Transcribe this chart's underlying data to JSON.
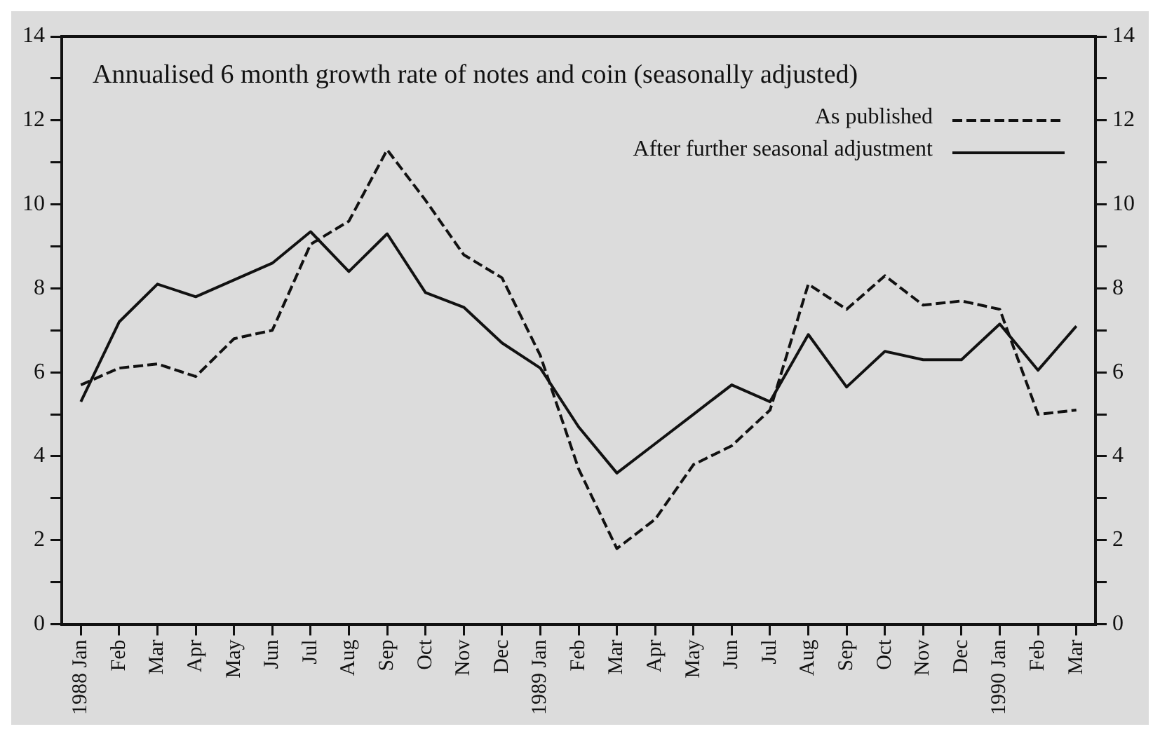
{
  "chart_data": {
    "type": "line",
    "title": "Annualised 6 month growth rate of notes and coin (seasonally adjusted)",
    "categories": [
      "1988 Jan",
      "Feb",
      "Mar",
      "Apr",
      "May",
      "Jun",
      "Jul",
      "Aug",
      "Sep",
      "Oct",
      "Nov",
      "Dec",
      "1989 Jan",
      "Feb",
      "Mar",
      "Apr",
      "May",
      "Jun",
      "Jul",
      "Aug",
      "Sep",
      "Oct",
      "Nov",
      "Dec",
      "1990 Jan",
      "Feb",
      "Mar"
    ],
    "series": [
      {
        "name": "As published",
        "color": "#111111",
        "line_style": "dashed",
        "values": [
          5.7,
          6.1,
          6.2,
          5.9,
          6.8,
          7.0,
          9.05,
          9.6,
          11.3,
          10.1,
          8.8,
          8.25,
          6.4,
          3.7,
          1.8,
          2.5,
          3.8,
          4.25,
          5.1,
          8.1,
          7.5,
          8.3,
          7.6,
          7.7,
          7.5,
          5.0,
          5.1
        ]
      },
      {
        "name": "After further seasonal adjustment",
        "color": "#111111",
        "line_style": "solid",
        "values": [
          5.3,
          7.2,
          8.1,
          7.8,
          8.2,
          8.6,
          9.35,
          8.4,
          9.3,
          7.9,
          7.55,
          6.7,
          6.1,
          4.7,
          3.6,
          4.3,
          5.0,
          5.7,
          5.3,
          6.9,
          5.65,
          6.5,
          6.3,
          6.3,
          7.15,
          6.05,
          7.1
        ]
      }
    ],
    "ylim": [
      0,
      14
    ],
    "yticks": [
      0,
      {
        "value": 1,
        "label": null
      },
      2,
      {
        "value": 3,
        "label": null
      },
      4,
      {
        "value": 5,
        "label": null
      },
      6,
      {
        "value": 7,
        "label": null
      },
      8,
      {
        "value": 9,
        "label": null
      },
      10,
      {
        "value": 11,
        "label": null
      },
      12,
      {
        "value": 13,
        "label": null
      },
      14
    ],
    "y2lim": [
      0,
      14
    ],
    "y2ticks": [
      0,
      {
        "value": 1,
        "label": null
      },
      2,
      {
        "value": 3,
        "label": null
      },
      4,
      {
        "value": 5,
        "label": null
      },
      6,
      {
        "value": 7,
        "label": null
      },
      8,
      {
        "value": 9,
        "label": null
      },
      10,
      {
        "value": 11,
        "label": null
      },
      12,
      {
        "value": 13,
        "label": null
      },
      14
    ],
    "grid": false,
    "legend": "top right",
    "marker": "none"
  }
}
